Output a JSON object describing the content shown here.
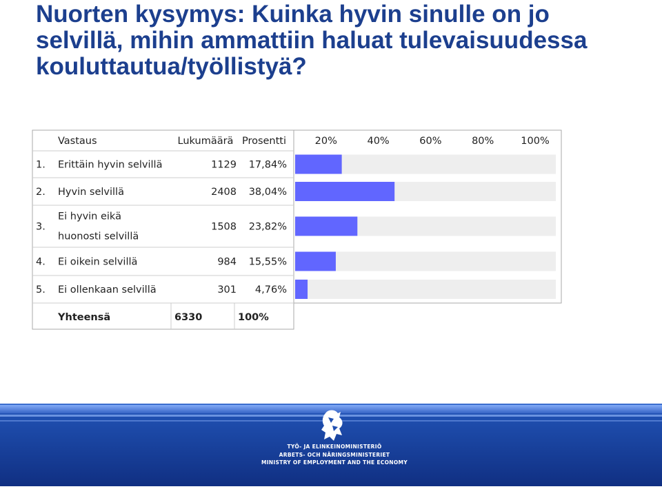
{
  "title_lines": [
    "Nuorten kysymys: Kuinka hyvin sinulle on jo",
    "selvillä, mihin ammattiin haluat tulevaisuudessa",
    "kouluttautua/työllistyä?"
  ],
  "table": {
    "headers": {
      "answer": "Vastaus",
      "count": "Lukumäärä",
      "percent": "Prosentti"
    },
    "total": {
      "label": "Yhteensä",
      "count": "6330",
      "percent": "100%"
    }
  },
  "chart_data": {
    "type": "bar",
    "orientation": "horizontal",
    "categories": [
      "Erittäin hyvin selvillä",
      "Hyvin selvillä",
      "Ei hyvin eikä huonosti selvillä",
      "Ei oikein selvillä",
      "Ei ollenkaan selvillä"
    ],
    "row_numbers": [
      "1.",
      "2.",
      "3.",
      "4.",
      "5."
    ],
    "counts": [
      "1129",
      "2408",
      "1508",
      "984",
      "301"
    ],
    "percent_labels": [
      "17,84%",
      "38,04%",
      "23,82%",
      "15,55%",
      "4,76%"
    ],
    "values": [
      17.84,
      38.04,
      23.82,
      15.55,
      4.76
    ],
    "x_ticks": [
      "20%",
      "40%",
      "60%",
      "80%",
      "100%"
    ],
    "xlim": [
      0,
      100
    ],
    "bar_color": "#6166ff",
    "track_color": "#eeeeee"
  },
  "footer": {
    "logo_lines": [
      "TYÖ- JA ELINKEINOMINISTERIÖ",
      "ARBETS- OCH NÄRINGSMINISTERIET",
      "MINISTRY OF EMPLOYMENT AND THE ECONOMY"
    ]
  }
}
